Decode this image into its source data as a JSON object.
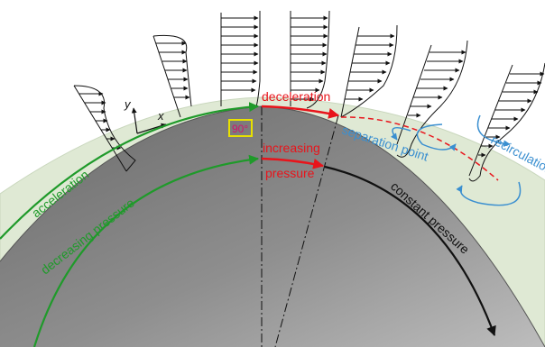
{
  "labels": {
    "acceleration": "acceleration",
    "decreasing_pressure": "decreasing pressure",
    "deceleration": "deceleration",
    "increasing": "increasing",
    "pressure": "pressure",
    "constant_pressure": "constant pressure",
    "separation_point": "separation point",
    "recirculation": "recirculation",
    "angle": "90°",
    "axis_y": "y",
    "axis_x": "x"
  },
  "colors": {
    "boundary_layer": "#dfe9d4",
    "cylinder_dark": "#6a6a6a",
    "cylinder_light": "#b8b8b8",
    "acceleration": "#1f9a2a",
    "deceleration": "#e8141b",
    "separation": "#3a8fd0",
    "constant": "#111111",
    "angle_box": "#e8e000",
    "angle_text": "#d0146e"
  },
  "velocity_profiles": 7
}
